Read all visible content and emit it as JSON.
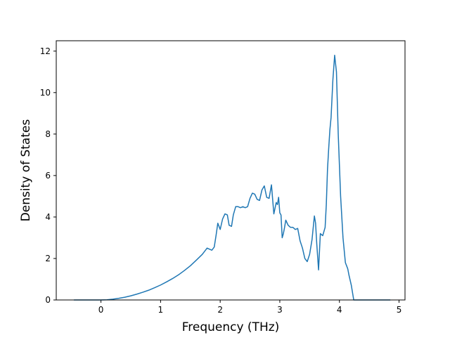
{
  "chart_data": {
    "type": "line",
    "title": "",
    "xlabel": "Frequency (THz)",
    "ylabel": "Density of States",
    "xlim": [
      -0.75,
      5.1
    ],
    "ylim": [
      0,
      12.5
    ],
    "x_ticks": [
      0,
      1,
      2,
      3,
      4,
      5
    ],
    "y_ticks": [
      0,
      2,
      4,
      6,
      8,
      10,
      12
    ],
    "grid": false,
    "legend": "none",
    "series": [
      {
        "color": "#1f77b4",
        "x": [
          -0.45,
          -0.3,
          -0.15,
          0,
          0.1,
          0.2,
          0.3,
          0.4,
          0.5,
          0.6,
          0.7,
          0.8,
          0.9,
          1.0,
          1.1,
          1.2,
          1.3,
          1.4,
          1.5,
          1.6,
          1.7,
          1.78,
          1.82,
          1.86,
          1.9,
          1.93,
          1.96,
          2.0,
          2.04,
          2.08,
          2.12,
          2.15,
          2.19,
          2.22,
          2.26,
          2.3,
          2.34,
          2.38,
          2.42,
          2.46,
          2.5,
          2.54,
          2.58,
          2.62,
          2.66,
          2.7,
          2.74,
          2.78,
          2.82,
          2.86,
          2.9,
          2.94,
          2.96,
          2.98,
          3.0,
          3.02,
          3.04,
          3.06,
          3.08,
          3.1,
          3.14,
          3.18,
          3.22,
          3.26,
          3.3,
          3.34,
          3.38,
          3.42,
          3.46,
          3.5,
          3.54,
          3.58,
          3.6,
          3.62,
          3.65,
          3.68,
          3.72,
          3.76,
          3.78,
          3.8,
          3.82,
          3.84,
          3.86,
          3.89,
          3.92,
          3.95,
          3.98,
          4.02,
          4.06,
          4.1,
          4.14,
          4.16,
          4.2,
          4.24,
          4.28,
          4.33,
          4.37,
          4.42,
          4.5,
          4.7,
          4.85
        ],
        "y": [
          0,
          0,
          0,
          0,
          0.01,
          0.04,
          0.08,
          0.13,
          0.2,
          0.28,
          0.37,
          0.47,
          0.59,
          0.72,
          0.87,
          1.03,
          1.21,
          1.42,
          1.65,
          1.92,
          2.2,
          2.5,
          2.45,
          2.4,
          2.55,
          3.1,
          3.7,
          3.4,
          3.9,
          4.15,
          4.1,
          3.6,
          3.55,
          4.1,
          4.5,
          4.5,
          4.45,
          4.5,
          4.45,
          4.5,
          4.9,
          5.15,
          5.1,
          4.85,
          4.8,
          5.3,
          5.5,
          4.95,
          4.9,
          5.55,
          4.15,
          4.7,
          4.6,
          4.95,
          4.2,
          4.1,
          3.0,
          3.2,
          3.5,
          3.85,
          3.6,
          3.5,
          3.5,
          3.4,
          3.45,
          2.85,
          2.5,
          2.0,
          1.85,
          2.2,
          2.9,
          4.05,
          3.7,
          2.7,
          1.45,
          3.2,
          3.1,
          3.5,
          4.6,
          6.3,
          7.3,
          8.2,
          8.8,
          10.6,
          11.8,
          11.0,
          8.0,
          5.0,
          3.0,
          1.8,
          1.5,
          1.2,
          0.7,
          0.0,
          0,
          0,
          0,
          0,
          0,
          0,
          0
        ]
      }
    ]
  }
}
